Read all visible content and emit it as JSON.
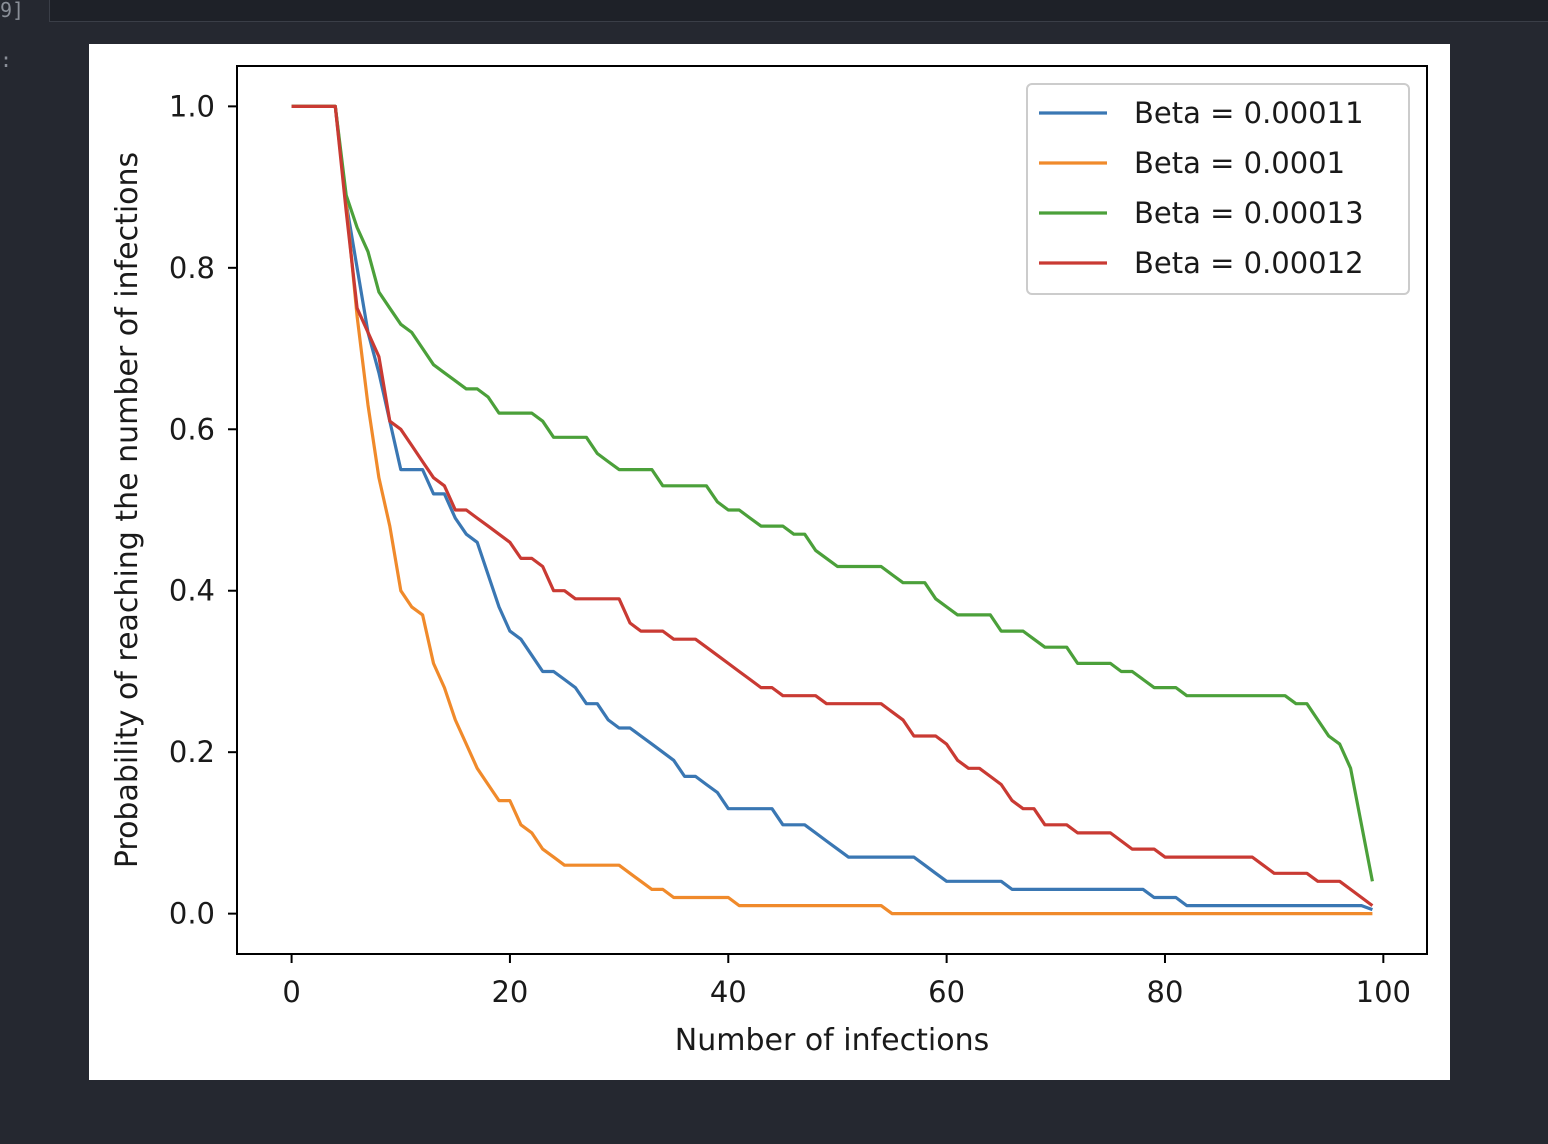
{
  "cell": {
    "prompt": "9]",
    "output_prompt": ":"
  },
  "chart_data": {
    "type": "line",
    "title": "",
    "xlabel": "Number of infections",
    "ylabel": "Probability of reaching the number of infections",
    "xlim": [
      -5,
      104
    ],
    "ylim": [
      -0.05,
      1.05
    ],
    "xticks": [
      0,
      20,
      40,
      60,
      80,
      100
    ],
    "yticks": [
      0.0,
      0.2,
      0.4,
      0.6,
      0.8,
      1.0
    ],
    "xtick_labels": [
      "0",
      "20",
      "40",
      "60",
      "80",
      "100"
    ],
    "ytick_labels": [
      "0.0",
      "0.2",
      "0.4",
      "0.6",
      "0.8",
      "1.0"
    ],
    "grid": false,
    "legend_position": "top-right",
    "series": [
      {
        "name": "Beta = 0.00011",
        "color": "#3a77b3",
        "points": [
          [
            0,
            1.0
          ],
          [
            4,
            1.0
          ],
          [
            5,
            0.88
          ],
          [
            6,
            0.8
          ],
          [
            7,
            0.72
          ],
          [
            8,
            0.67
          ],
          [
            9,
            0.61
          ],
          [
            10,
            0.55
          ],
          [
            12,
            0.55
          ],
          [
            13,
            0.52
          ],
          [
            14,
            0.52
          ],
          [
            15,
            0.49
          ],
          [
            16,
            0.47
          ],
          [
            17,
            0.46
          ],
          [
            18,
            0.42
          ],
          [
            19,
            0.38
          ],
          [
            20,
            0.35
          ],
          [
            21,
            0.34
          ],
          [
            22,
            0.32
          ],
          [
            23,
            0.3
          ],
          [
            24,
            0.3
          ],
          [
            25,
            0.29
          ],
          [
            26,
            0.28
          ],
          [
            27,
            0.26
          ],
          [
            28,
            0.26
          ],
          [
            29,
            0.24
          ],
          [
            30,
            0.23
          ],
          [
            31,
            0.23
          ],
          [
            32,
            0.22
          ],
          [
            33,
            0.21
          ],
          [
            34,
            0.2
          ],
          [
            35,
            0.19
          ],
          [
            36,
            0.17
          ],
          [
            37,
            0.17
          ],
          [
            38,
            0.16
          ],
          [
            39,
            0.15
          ],
          [
            40,
            0.13
          ],
          [
            44,
            0.13
          ],
          [
            45,
            0.11
          ],
          [
            47,
            0.11
          ],
          [
            48,
            0.1
          ],
          [
            49,
            0.09
          ],
          [
            50,
            0.08
          ],
          [
            51,
            0.07
          ],
          [
            57,
            0.07
          ],
          [
            58,
            0.06
          ],
          [
            59,
            0.05
          ],
          [
            60,
            0.04
          ],
          [
            64,
            0.04
          ],
          [
            65,
            0.04
          ],
          [
            66,
            0.03
          ],
          [
            78,
            0.03
          ],
          [
            79,
            0.02
          ],
          [
            81,
            0.02
          ],
          [
            82,
            0.01
          ],
          [
            98,
            0.01
          ],
          [
            99,
            0.005
          ]
        ]
      },
      {
        "name": "Beta = 0.0001",
        "color": "#f08a2b",
        "points": [
          [
            0,
            1.0
          ],
          [
            4,
            1.0
          ],
          [
            5,
            0.88
          ],
          [
            6,
            0.74
          ],
          [
            7,
            0.63
          ],
          [
            8,
            0.54
          ],
          [
            9,
            0.48
          ],
          [
            10,
            0.4
          ],
          [
            11,
            0.38
          ],
          [
            12,
            0.37
          ],
          [
            13,
            0.31
          ],
          [
            14,
            0.28
          ],
          [
            15,
            0.24
          ],
          [
            16,
            0.21
          ],
          [
            17,
            0.18
          ],
          [
            18,
            0.16
          ],
          [
            19,
            0.14
          ],
          [
            20,
            0.14
          ],
          [
            21,
            0.11
          ],
          [
            22,
            0.1
          ],
          [
            23,
            0.08
          ],
          [
            24,
            0.07
          ],
          [
            25,
            0.06
          ],
          [
            30,
            0.06
          ],
          [
            31,
            0.05
          ],
          [
            32,
            0.04
          ],
          [
            33,
            0.03
          ],
          [
            34,
            0.03
          ],
          [
            35,
            0.02
          ],
          [
            40,
            0.02
          ],
          [
            41,
            0.01
          ],
          [
            54,
            0.01
          ],
          [
            55,
            0.0
          ],
          [
            99,
            0.0
          ]
        ]
      },
      {
        "name": "Beta = 0.00013",
        "color": "#4ba03a",
        "points": [
          [
            0,
            1.0
          ],
          [
            4,
            1.0
          ],
          [
            5,
            0.89
          ],
          [
            6,
            0.85
          ],
          [
            7,
            0.82
          ],
          [
            8,
            0.77
          ],
          [
            9,
            0.75
          ],
          [
            10,
            0.73
          ],
          [
            11,
            0.72
          ],
          [
            12,
            0.7
          ],
          [
            13,
            0.68
          ],
          [
            14,
            0.67
          ],
          [
            15,
            0.66
          ],
          [
            16,
            0.65
          ],
          [
            17,
            0.65
          ],
          [
            18,
            0.64
          ],
          [
            19,
            0.62
          ],
          [
            22,
            0.62
          ],
          [
            23,
            0.61
          ],
          [
            24,
            0.59
          ],
          [
            27,
            0.59
          ],
          [
            28,
            0.57
          ],
          [
            29,
            0.56
          ],
          [
            30,
            0.55
          ],
          [
            33,
            0.55
          ],
          [
            34,
            0.53
          ],
          [
            38,
            0.53
          ],
          [
            39,
            0.51
          ],
          [
            40,
            0.5
          ],
          [
            41,
            0.5
          ],
          [
            42,
            0.49
          ],
          [
            43,
            0.48
          ],
          [
            45,
            0.48
          ],
          [
            46,
            0.47
          ],
          [
            47,
            0.47
          ],
          [
            48,
            0.45
          ],
          [
            49,
            0.44
          ],
          [
            50,
            0.43
          ],
          [
            54,
            0.43
          ],
          [
            55,
            0.42
          ],
          [
            56,
            0.41
          ],
          [
            58,
            0.41
          ],
          [
            59,
            0.39
          ],
          [
            60,
            0.38
          ],
          [
            61,
            0.37
          ],
          [
            64,
            0.37
          ],
          [
            65,
            0.35
          ],
          [
            67,
            0.35
          ],
          [
            68,
            0.34
          ],
          [
            69,
            0.33
          ],
          [
            71,
            0.33
          ],
          [
            72,
            0.31
          ],
          [
            75,
            0.31
          ],
          [
            76,
            0.3
          ],
          [
            77,
            0.3
          ],
          [
            78,
            0.29
          ],
          [
            79,
            0.28
          ],
          [
            81,
            0.28
          ],
          [
            82,
            0.27
          ],
          [
            91,
            0.27
          ],
          [
            92,
            0.26
          ],
          [
            93,
            0.26
          ],
          [
            94,
            0.24
          ],
          [
            95,
            0.22
          ],
          [
            96,
            0.21
          ],
          [
            97,
            0.18
          ],
          [
            98,
            0.11
          ],
          [
            99,
            0.04
          ]
        ]
      },
      {
        "name": "Beta = 0.00012",
        "color": "#c93a33",
        "points": [
          [
            0,
            1.0
          ],
          [
            4,
            1.0
          ],
          [
            5,
            0.87
          ],
          [
            6,
            0.75
          ],
          [
            7,
            0.72
          ],
          [
            8,
            0.69
          ],
          [
            9,
            0.61
          ],
          [
            10,
            0.6
          ],
          [
            11,
            0.58
          ],
          [
            12,
            0.56
          ],
          [
            13,
            0.54
          ],
          [
            14,
            0.53
          ],
          [
            15,
            0.5
          ],
          [
            16,
            0.5
          ],
          [
            17,
            0.49
          ],
          [
            18,
            0.48
          ],
          [
            19,
            0.47
          ],
          [
            20,
            0.46
          ],
          [
            21,
            0.44
          ],
          [
            22,
            0.44
          ],
          [
            23,
            0.43
          ],
          [
            24,
            0.4
          ],
          [
            25,
            0.4
          ],
          [
            26,
            0.39
          ],
          [
            30,
            0.39
          ],
          [
            31,
            0.36
          ],
          [
            32,
            0.35
          ],
          [
            34,
            0.35
          ],
          [
            35,
            0.34
          ],
          [
            37,
            0.34
          ],
          [
            38,
            0.33
          ],
          [
            39,
            0.32
          ],
          [
            40,
            0.31
          ],
          [
            41,
            0.3
          ],
          [
            42,
            0.29
          ],
          [
            43,
            0.28
          ],
          [
            44,
            0.28
          ],
          [
            45,
            0.27
          ],
          [
            48,
            0.27
          ],
          [
            49,
            0.26
          ],
          [
            54,
            0.26
          ],
          [
            55,
            0.25
          ],
          [
            56,
            0.24
          ],
          [
            57,
            0.22
          ],
          [
            59,
            0.22
          ],
          [
            60,
            0.21
          ],
          [
            61,
            0.19
          ],
          [
            62,
            0.18
          ],
          [
            63,
            0.18
          ],
          [
            64,
            0.17
          ],
          [
            65,
            0.16
          ],
          [
            66,
            0.14
          ],
          [
            67,
            0.13
          ],
          [
            68,
            0.13
          ],
          [
            69,
            0.11
          ],
          [
            71,
            0.11
          ],
          [
            72,
            0.1
          ],
          [
            75,
            0.1
          ],
          [
            76,
            0.09
          ],
          [
            77,
            0.08
          ],
          [
            79,
            0.08
          ],
          [
            80,
            0.07
          ],
          [
            88,
            0.07
          ],
          [
            89,
            0.06
          ],
          [
            90,
            0.05
          ],
          [
            93,
            0.05
          ],
          [
            94,
            0.04
          ],
          [
            96,
            0.04
          ],
          [
            97,
            0.03
          ],
          [
            99,
            0.01
          ]
        ]
      }
    ]
  }
}
